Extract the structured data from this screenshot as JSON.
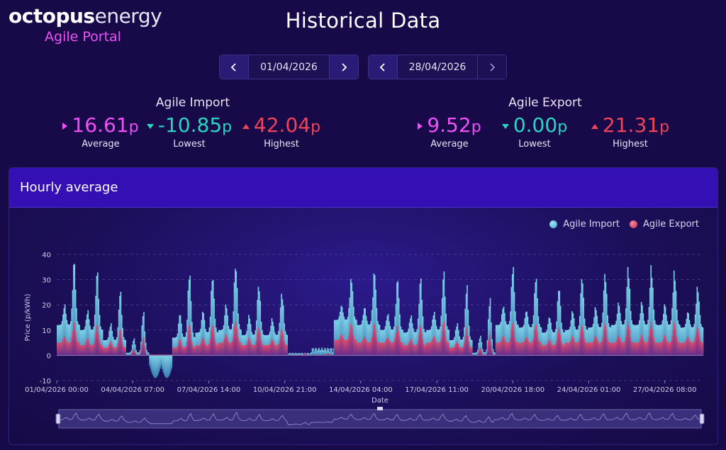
{
  "brand": {
    "name_bold": "octopus",
    "name_light": "energy",
    "subtitle": "Agile Portal"
  },
  "page_title": "Historical Data",
  "date_start": {
    "value": "01/04/2026"
  },
  "date_end": {
    "value": "28/04/2026"
  },
  "import_stats": {
    "title": "Agile Import",
    "average": {
      "value": "16.61",
      "unit": "p",
      "label": "Average"
    },
    "lowest": {
      "value": "-10.85",
      "unit": "p",
      "label": "Lowest"
    },
    "highest": {
      "value": "42.04",
      "unit": "p",
      "label": "Highest"
    }
  },
  "export_stats": {
    "title": "Agile Export",
    "average": {
      "value": "9.52",
      "unit": "p",
      "label": "Average"
    },
    "lowest": {
      "value": "0.00",
      "unit": "p",
      "label": "Lowest"
    },
    "highest": {
      "value": "21.31",
      "unit": "p",
      "label": "Highest"
    }
  },
  "card": {
    "title": "Hourly average"
  },
  "colors": {
    "import": "#48b8d6",
    "export": "#d8405e",
    "average": "#f050f8",
    "lowest": "#2ad5c4",
    "highest": "#ef4458"
  },
  "chart_data": {
    "type": "bar",
    "ylabel": "Price (p/kWh)",
    "xlabel": "Date",
    "ylim": [
      -10,
      40
    ],
    "yticks": [
      -10,
      0,
      10,
      20,
      30,
      40
    ],
    "xticks": [
      "01/04/2026 00:00",
      "04/04/2026 07:00",
      "07/04/2026 14:00",
      "10/04/2026 21:00",
      "14/04/2026 04:00",
      "17/04/2026 11:00",
      "20/04/2026 18:00",
      "24/04/2026 01:00",
      "27/04/2026 08:00"
    ],
    "grid": true,
    "legend_position": "top-right",
    "x_start": "01/04/2026",
    "x_end": "28/04/2026",
    "days": [
      "01/04",
      "02/04",
      "03/04",
      "04/04",
      "05/04",
      "06/04",
      "07/04",
      "08/04",
      "09/04",
      "10/04",
      "11/04",
      "12/04",
      "13/04",
      "14/04",
      "15/04",
      "16/04",
      "17/04",
      "18/04",
      "19/04",
      "20/04",
      "21/04",
      "22/04",
      "23/04",
      "24/04",
      "25/04",
      "26/04",
      "27/04",
      "28/04"
    ],
    "series": [
      {
        "name": "Agile Import",
        "daily_peak": [
          39,
          35,
          27,
          19,
          -9,
          37,
          36,
          42,
          33,
          29,
          1,
          3,
          34,
          37,
          33,
          33,
          35,
          29,
          24,
          37,
          33,
          29,
          34,
          36,
          39,
          40,
          38,
          31
        ],
        "daily_min": [
          12,
          10,
          6,
          1,
          -9,
          7,
          9,
          10,
          8,
          8,
          -8,
          1,
          14,
          12,
          10,
          9,
          10,
          6,
          1,
          12,
          11,
          9,
          10,
          11,
          12,
          12,
          12,
          11
        ]
      },
      {
        "name": "Agile Export",
        "daily_peak": [
          14,
          13,
          11,
          8,
          0,
          14,
          14,
          16,
          13,
          12,
          1,
          1,
          14,
          14,
          13,
          13,
          14,
          12,
          10,
          14,
          13,
          12,
          13,
          14,
          15,
          15,
          15,
          13
        ],
        "daily_min": [
          5,
          4,
          3,
          0,
          0,
          3,
          4,
          5,
          4,
          4,
          0,
          0,
          6,
          5,
          5,
          4,
          5,
          3,
          0,
          5,
          5,
          4,
          5,
          5,
          5,
          5,
          5,
          5
        ]
      }
    ]
  }
}
